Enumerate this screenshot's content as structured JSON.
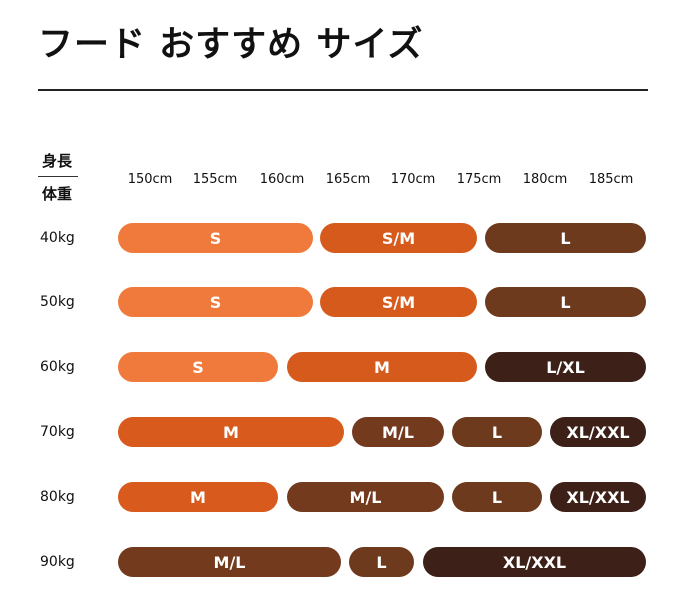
{
  "title": "フード おすすめ サイズ",
  "header": {
    "height_label": "身長",
    "weight_label": "体重"
  },
  "heights": [
    "150cm",
    "155cm",
    "160cm",
    "165cm",
    "170cm",
    "175cm",
    "180cm",
    "185cm"
  ],
  "colors": {
    "s": "#f07a3b",
    "sm": "#d75a1d",
    "m": "#d85a1c",
    "ml": "#733a1e",
    "l": "#6e3a1e",
    "lxl": "#4a2618",
    "xl": "#3d2018"
  },
  "rows": [
    {
      "weight": "40kg",
      "sizes": [
        "S",
        "S/M",
        "L"
      ]
    },
    {
      "weight": "50kg",
      "sizes": [
        "S",
        "S/M",
        "L"
      ]
    },
    {
      "weight": "60kg",
      "sizes": [
        "S",
        "M",
        "L/XL"
      ]
    },
    {
      "weight": "70kg",
      "sizes": [
        "M",
        "M/L",
        "L",
        "XL/XXL"
      ]
    },
    {
      "weight": "80kg",
      "sizes": [
        "M",
        "M/L",
        "L",
        "XL/XXL"
      ]
    },
    {
      "weight": "90kg",
      "sizes": [
        "M/L",
        "L",
        "XL/XXL"
      ]
    }
  ]
}
